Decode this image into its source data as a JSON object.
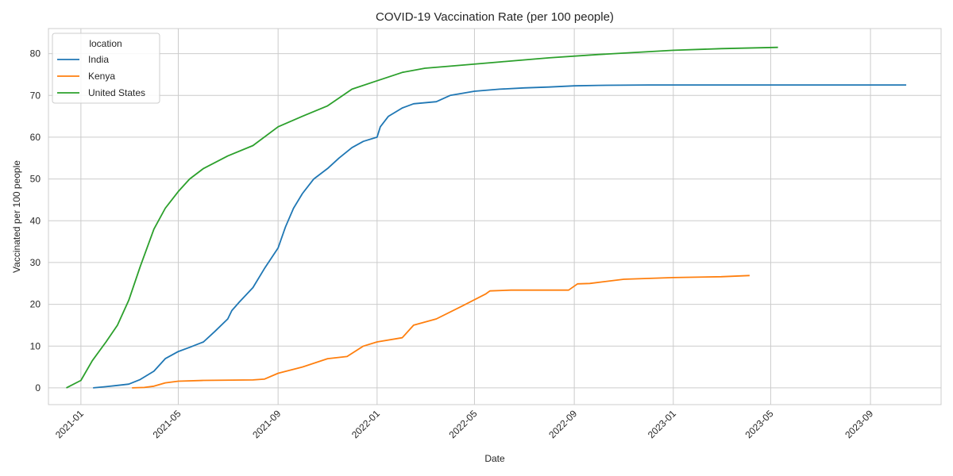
{
  "chart_data": {
    "type": "line",
    "title": "COVID-19 Vaccination Rate (per 100 people)",
    "xlabel": "Date",
    "ylabel": "Vaccinated per 100 people",
    "x_type": "date",
    "xlim": [
      "2020-11-22",
      "2023-11-27"
    ],
    "ylim": [
      -4,
      86
    ],
    "yticks": [
      0,
      10,
      20,
      30,
      40,
      50,
      60,
      70,
      80
    ],
    "xticks": [
      "2021-01",
      "2021-05",
      "2021-09",
      "2022-01",
      "2022-05",
      "2022-09",
      "2023-01",
      "2023-05",
      "2023-09"
    ],
    "grid": true,
    "legend": {
      "title": "location",
      "placement": "top-left"
    },
    "series": [
      {
        "name": "India",
        "color": "#1f77b4",
        "points": [
          [
            "2021-01-16",
            0
          ],
          [
            "2021-02-01",
            0.3
          ],
          [
            "2021-02-15",
            0.6
          ],
          [
            "2021-03-01",
            0.9
          ],
          [
            "2021-03-15",
            2.0
          ],
          [
            "2021-04-01",
            4.0
          ],
          [
            "2021-04-15",
            7.0
          ],
          [
            "2021-05-01",
            8.7
          ],
          [
            "2021-05-15",
            9.7
          ],
          [
            "2021-06-01",
            11.0
          ],
          [
            "2021-06-15",
            13.5
          ],
          [
            "2021-07-01",
            16.5
          ],
          [
            "2021-07-06",
            18.5
          ],
          [
            "2021-07-15",
            20.5
          ],
          [
            "2021-08-01",
            24.0
          ],
          [
            "2021-08-15",
            28.5
          ],
          [
            "2021-09-01",
            33.5
          ],
          [
            "2021-09-10",
            38.5
          ],
          [
            "2021-09-20",
            43.0
          ],
          [
            "2021-10-01",
            46.5
          ],
          [
            "2021-10-15",
            50.0
          ],
          [
            "2021-11-01",
            52.5
          ],
          [
            "2021-11-15",
            55.0
          ],
          [
            "2021-12-01",
            57.5
          ],
          [
            "2021-12-15",
            59.0
          ],
          [
            "2022-01-01",
            60.0
          ],
          [
            "2022-01-05",
            62.5
          ],
          [
            "2022-01-15",
            65.0
          ],
          [
            "2022-02-01",
            67.0
          ],
          [
            "2022-02-15",
            68.0
          ],
          [
            "2022-03-15",
            68.5
          ],
          [
            "2022-04-01",
            70.0
          ],
          [
            "2022-05-01",
            71.0
          ],
          [
            "2022-06-01",
            71.5
          ],
          [
            "2022-07-01",
            71.8
          ],
          [
            "2022-08-01",
            72.0
          ],
          [
            "2022-09-01",
            72.3
          ],
          [
            "2022-10-01",
            72.4
          ],
          [
            "2022-12-01",
            72.5
          ],
          [
            "2023-03-01",
            72.5
          ],
          [
            "2023-06-01",
            72.5
          ],
          [
            "2023-10-15",
            72.5
          ]
        ]
      },
      {
        "name": "Kenya",
        "color": "#ff7f0e",
        "points": [
          [
            "2021-03-05",
            0
          ],
          [
            "2021-03-20",
            0.1
          ],
          [
            "2021-04-01",
            0.4
          ],
          [
            "2021-04-15",
            1.2
          ],
          [
            "2021-05-01",
            1.6
          ],
          [
            "2021-06-01",
            1.8
          ],
          [
            "2021-08-01",
            1.9
          ],
          [
            "2021-08-15",
            2.1
          ],
          [
            "2021-09-01",
            3.5
          ],
          [
            "2021-10-01",
            5.0
          ],
          [
            "2021-11-01",
            7.0
          ],
          [
            "2021-11-25",
            7.5
          ],
          [
            "2021-12-15",
            10.0
          ],
          [
            "2022-01-01",
            11.0
          ],
          [
            "2022-02-01",
            12.0
          ],
          [
            "2022-02-15",
            15.0
          ],
          [
            "2022-03-15",
            16.5
          ],
          [
            "2022-04-15",
            19.5
          ],
          [
            "2022-05-15",
            22.5
          ],
          [
            "2022-05-20",
            23.2
          ],
          [
            "2022-06-15",
            23.4
          ],
          [
            "2022-08-25",
            23.4
          ],
          [
            "2022-09-05",
            24.9
          ],
          [
            "2022-09-20",
            25.0
          ],
          [
            "2022-11-01",
            26.0
          ],
          [
            "2023-01-01",
            26.4
          ],
          [
            "2023-03-01",
            26.6
          ],
          [
            "2023-04-05",
            26.9
          ]
        ]
      },
      {
        "name": "United States",
        "color": "#2ca02c",
        "points": [
          [
            "2020-12-14",
            0
          ],
          [
            "2021-01-01",
            1.8
          ],
          [
            "2021-01-15",
            6.5
          ],
          [
            "2021-02-01",
            11.0
          ],
          [
            "2021-02-15",
            15.0
          ],
          [
            "2021-03-01",
            21.0
          ],
          [
            "2021-03-15",
            29.0
          ],
          [
            "2021-04-01",
            38.0
          ],
          [
            "2021-04-15",
            43.0
          ],
          [
            "2021-05-01",
            47.0
          ],
          [
            "2021-05-15",
            50.0
          ],
          [
            "2021-06-01",
            52.5
          ],
          [
            "2021-07-01",
            55.5
          ],
          [
            "2021-08-01",
            58.0
          ],
          [
            "2021-09-01",
            62.5
          ],
          [
            "2021-10-01",
            65.0
          ],
          [
            "2021-11-01",
            67.5
          ],
          [
            "2021-12-01",
            71.5
          ],
          [
            "2022-01-01",
            73.5
          ],
          [
            "2022-02-01",
            75.5
          ],
          [
            "2022-03-01",
            76.5
          ],
          [
            "2022-04-01",
            77.0
          ],
          [
            "2022-06-01",
            78.0
          ],
          [
            "2022-08-01",
            79.0
          ],
          [
            "2022-10-01",
            79.8
          ],
          [
            "2023-01-01",
            80.8
          ],
          [
            "2023-03-01",
            81.2
          ],
          [
            "2023-05-10",
            81.5
          ]
        ]
      }
    ]
  }
}
